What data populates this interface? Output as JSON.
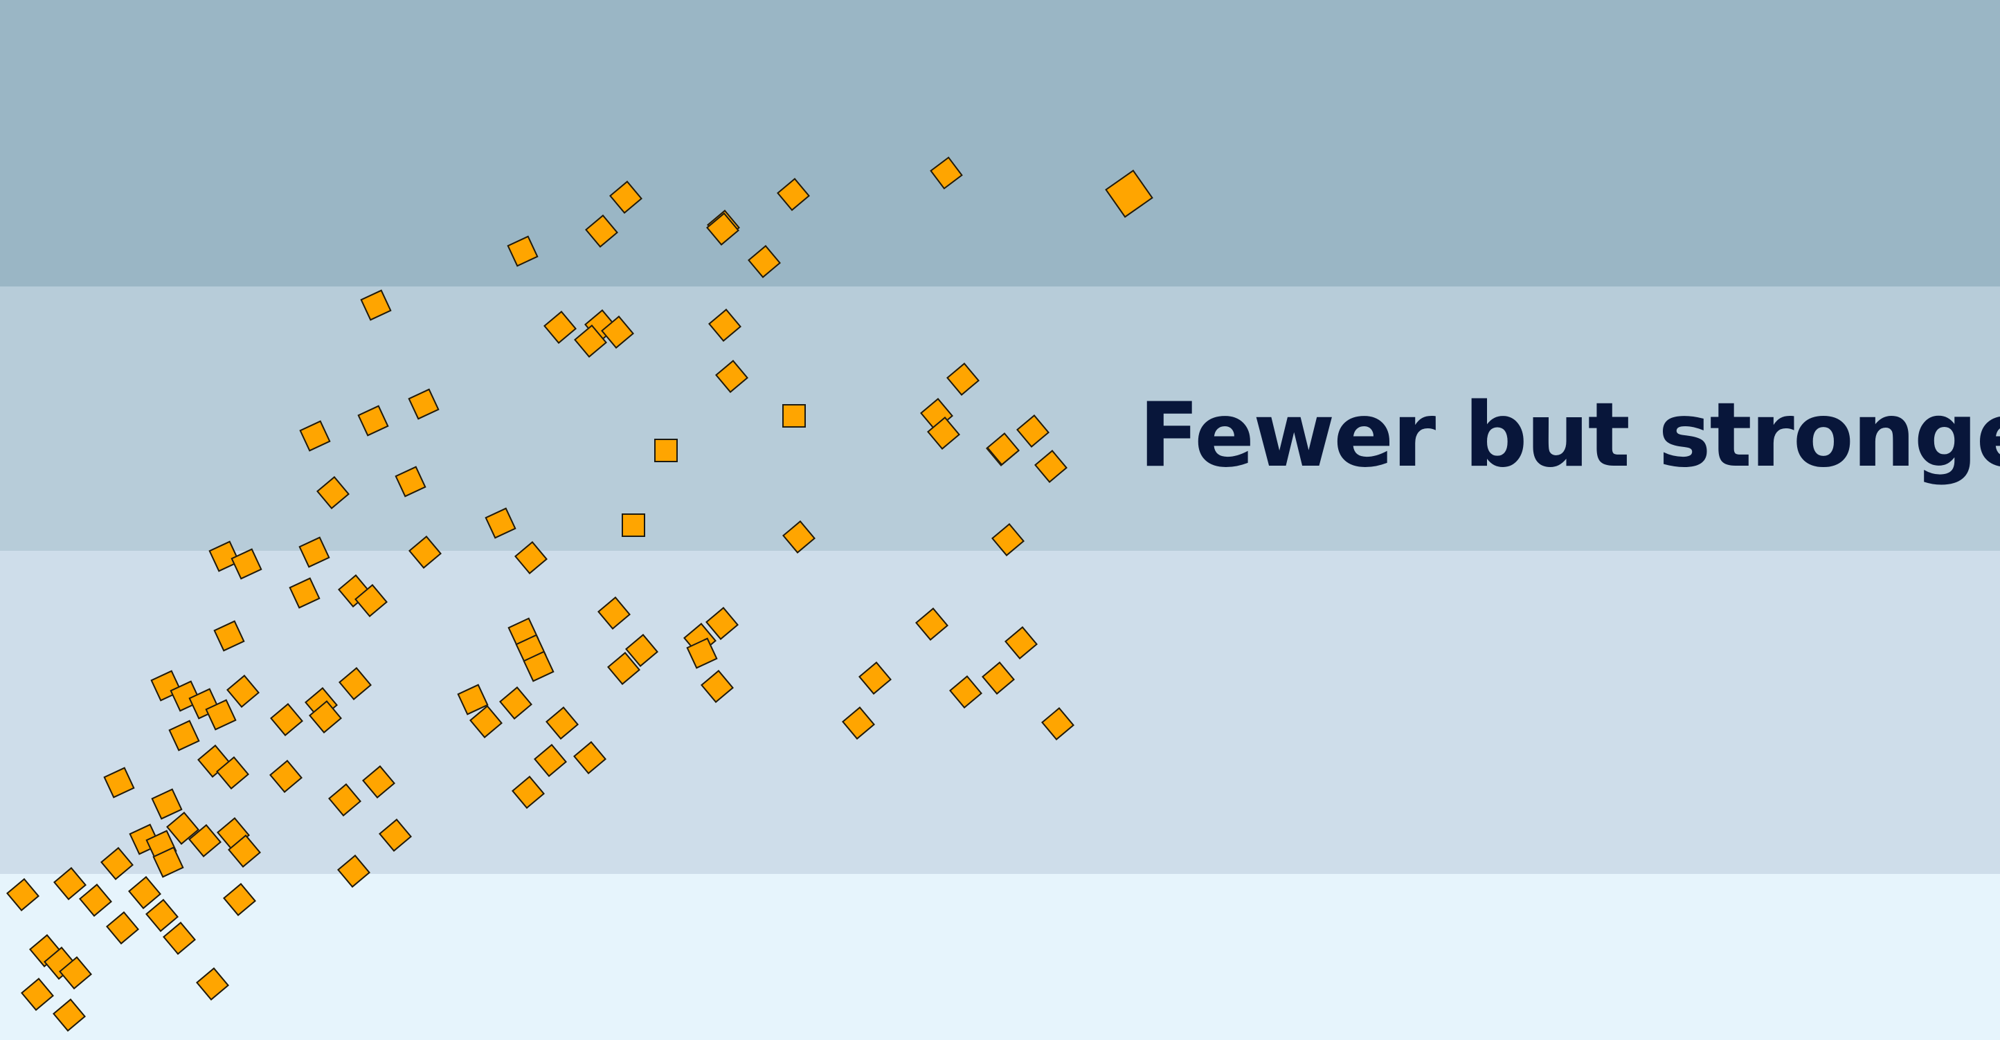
{
  "headline": "Fewer but stronger",
  "colors": {
    "band_top": "#9ab6c5",
    "band_upper_mid": "#b7ccd9",
    "band_lower_mid": "#ceddea",
    "band_bottom": "#e6f4fc",
    "tile_fill": "#ffa500",
    "tile_outline": "#1c1a12",
    "headline_color": "#08163a"
  }
}
